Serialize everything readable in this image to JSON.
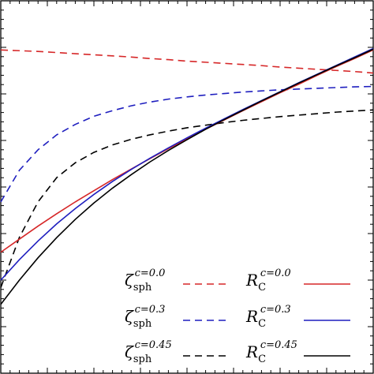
{
  "chart_data": {
    "type": "line",
    "title": "",
    "xlabel": "",
    "ylabel": "",
    "xlim": [
      0,
      1
    ],
    "ylim": [
      0,
      1
    ],
    "grid": false,
    "legend_position": "bottom-right",
    "x": [
      0,
      0.05,
      0.1,
      0.15,
      0.2,
      0.25,
      0.3,
      0.35,
      0.4,
      0.45,
      0.5,
      0.55,
      0.6,
      0.65,
      0.7,
      0.75,
      0.8,
      0.85,
      0.9,
      0.95,
      1.0
    ],
    "series": [
      {
        "name": "ζsph c=0.0",
        "symbol": "ζ",
        "sub": "sph",
        "sup": "c=0.0",
        "color": "#d62728",
        "dash": true,
        "values": [
          0.868,
          0.866,
          0.864,
          0.861,
          0.858,
          0.855,
          0.852,
          0.849,
          0.845,
          0.842,
          0.838,
          0.835,
          0.832,
          0.829,
          0.826,
          0.822,
          0.819,
          0.816,
          0.813,
          0.81,
          0.806
        ]
      },
      {
        "name": "ζsph c=0.3",
        "symbol": "ζ",
        "sub": "sph",
        "sup": "c=0.3",
        "color": "#1f1fbf",
        "dash": true,
        "values": [
          0.46,
          0.545,
          0.6,
          0.64,
          0.668,
          0.69,
          0.705,
          0.718,
          0.728,
          0.736,
          0.742,
          0.747,
          0.751,
          0.755,
          0.758,
          0.761,
          0.763,
          0.765,
          0.767,
          0.769,
          0.77
        ]
      },
      {
        "name": "ζsph c=0.45",
        "symbol": "ζ",
        "sub": "sph",
        "sup": "c=0.45",
        "color": "#000000",
        "dash": true,
        "values": [
          0.23,
          0.365,
          0.46,
          0.525,
          0.565,
          0.593,
          0.613,
          0.628,
          0.64,
          0.65,
          0.659,
          0.666,
          0.673,
          0.679,
          0.684,
          0.689,
          0.693,
          0.697,
          0.701,
          0.704,
          0.707
        ]
      },
      {
        "name": "RC c=0.0",
        "symbol": "R",
        "sub": "C",
        "sup": "c=0.0",
        "color": "#d62728",
        "dash": false,
        "values": [
          0.325,
          0.36,
          0.395,
          0.428,
          0.46,
          0.49,
          0.52,
          0.548,
          0.576,
          0.603,
          0.629,
          0.655,
          0.68,
          0.705,
          0.729,
          0.753,
          0.776,
          0.8,
          0.823,
          0.845,
          0.868
        ]
      },
      {
        "name": "RC c=0.3",
        "symbol": "R",
        "sub": "C",
        "sup": "c=0.3",
        "color": "#1f1fbf",
        "dash": false,
        "values": [
          0.25,
          0.305,
          0.355,
          0.401,
          0.442,
          0.48,
          0.515,
          0.547,
          0.577,
          0.605,
          0.632,
          0.658,
          0.683,
          0.708,
          0.732,
          0.756,
          0.78,
          0.803,
          0.826,
          0.849,
          0.872
        ]
      },
      {
        "name": "RC c=0.45",
        "symbol": "R",
        "sub": "C",
        "sup": "c=0.45",
        "color": "#000000",
        "dash": false,
        "values": [
          0.185,
          0.25,
          0.31,
          0.364,
          0.413,
          0.457,
          0.497,
          0.533,
          0.567,
          0.598,
          0.627,
          0.655,
          0.681,
          0.706,
          0.731,
          0.755,
          0.779,
          0.802,
          0.825,
          0.847,
          0.87
        ]
      }
    ]
  }
}
